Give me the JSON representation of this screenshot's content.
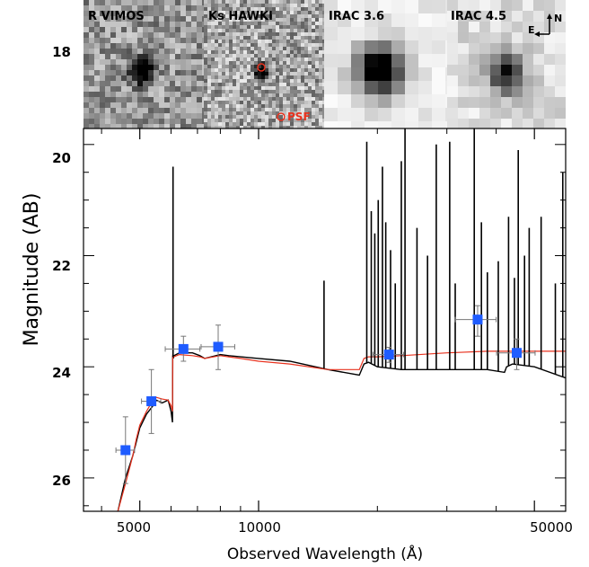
{
  "chart_data": {
    "type": "line",
    "xlabel": "Observed Wavelength (Å)",
    "ylabel": "Magnitude (AB)",
    "xscale": "log",
    "xlim": [
      3600,
      60000
    ],
    "ylim": [
      26.6,
      17.4
    ],
    "x_ticks": [
      5000,
      10000,
      50000
    ],
    "x_tick_labels": [
      "5000",
      "10000",
      "50000"
    ],
    "y_ticks": [
      18,
      20,
      22,
      24,
      26
    ],
    "y_tick_labels": [
      "18",
      "20",
      "22",
      "24",
      "26"
    ],
    "grid": false,
    "colors": {
      "black_spectrum": "#000000",
      "red_sed": "#e8321e",
      "points": "#1f5cff",
      "psf": "#e8321e"
    },
    "thumbnails": [
      {
        "label": "R VIMOS",
        "style": "small-source"
      },
      {
        "label": "Ks HAWKI",
        "style": "point-source",
        "psf_label": "PSF"
      },
      {
        "label": "IRAC 3.6",
        "style": "blocky-bright"
      },
      {
        "label": "IRAC 4.5",
        "style": "blocky-medium",
        "compass": [
          "N",
          "E"
        ]
      }
    ],
    "series": [
      {
        "role": "black_spectrum",
        "x": [
          3900,
          4400,
          4600,
          4700,
          4800,
          4900,
          5000,
          5200,
          5400,
          5500,
          5700,
          5900,
          6000,
          6050,
          6060,
          6080,
          6100,
          6300,
          6800,
          7100,
          7300,
          8000,
          8400,
          9000,
          10000,
          12000,
          15000,
          18000,
          18500,
          19000,
          20000,
          23000,
          30000,
          38000,
          42000,
          42500,
          44000,
          50000,
          60000
        ],
        "y": [
          28.0,
          26.6,
          26.0,
          25.8,
          25.6,
          25.35,
          25.1,
          24.85,
          24.7,
          24.6,
          24.65,
          24.6,
          24.8,
          25.0,
          23.8,
          23.85,
          23.8,
          23.75,
          23.75,
          23.8,
          23.85,
          23.78,
          23.8,
          23.82,
          23.85,
          23.9,
          24.05,
          24.15,
          23.95,
          23.92,
          24.0,
          24.05,
          24.05,
          24.05,
          24.1,
          24.0,
          23.95,
          24.0,
          24.2
        ]
      },
      {
        "role": "red_sed",
        "x": [
          3900,
          4400,
          4600,
          4700,
          4800,
          4900,
          5000,
          5200,
          5400,
          5500,
          5700,
          5900,
          6000,
          6050,
          6060,
          6100,
          6300,
          6800,
          7100,
          7300,
          8000,
          8400,
          9000,
          10000,
          12000,
          15000,
          18000,
          18500,
          19000,
          20000,
          23000,
          30000,
          38000,
          42000,
          50000,
          60000
        ],
        "y": [
          28.0,
          26.6,
          26.1,
          25.85,
          25.6,
          25.3,
          25.05,
          24.8,
          24.6,
          24.55,
          24.58,
          24.6,
          24.7,
          24.8,
          23.8,
          23.82,
          23.78,
          23.8,
          23.82,
          23.85,
          23.8,
          23.82,
          23.85,
          23.9,
          23.95,
          24.05,
          24.05,
          23.85,
          23.82,
          23.82,
          23.8,
          23.75,
          23.72,
          23.72,
          23.72,
          23.72
        ]
      }
    ],
    "emission_lines": [
      {
        "x": 6070,
        "top": 20.4
      },
      {
        "x": 14650,
        "top": 22.45
      },
      {
        "x": 18800,
        "top": 19.95
      },
      {
        "x": 19300,
        "top": 21.2
      },
      {
        "x": 19700,
        "top": 21.6
      },
      {
        "x": 20100,
        "top": 21.0
      },
      {
        "x": 20600,
        "top": 20.4
      },
      {
        "x": 21000,
        "top": 21.4
      },
      {
        "x": 21600,
        "top": 21.9
      },
      {
        "x": 22200,
        "top": 22.5
      },
      {
        "x": 23000,
        "top": 20.3
      },
      {
        "x": 23500,
        "top": 19.6
      },
      {
        "x": 25200,
        "top": 21.5
      },
      {
        "x": 26800,
        "top": 22.0
      },
      {
        "x": 28200,
        "top": 20.0
      },
      {
        "x": 30500,
        "top": 19.95
      },
      {
        "x": 31500,
        "top": 22.5
      },
      {
        "x": 35200,
        "top": 19.7
      },
      {
        "x": 36700,
        "top": 21.4
      },
      {
        "x": 38000,
        "top": 22.3
      },
      {
        "x": 40500,
        "top": 22.1
      },
      {
        "x": 43000,
        "top": 21.3
      },
      {
        "x": 44500,
        "top": 22.4
      },
      {
        "x": 45500,
        "top": 20.1
      },
      {
        "x": 47200,
        "top": 22.0
      },
      {
        "x": 48500,
        "top": 21.5
      },
      {
        "x": 52000,
        "top": 21.3
      },
      {
        "x": 56500,
        "top": 22.5
      },
      {
        "x": 59000,
        "top": 20.5
      }
    ],
    "photometry": [
      {
        "x": 4600,
        "y": 25.5,
        "xerr": [
          4350,
          4850
        ],
        "yerr": [
          24.9,
          26.1
        ]
      },
      {
        "x": 5350,
        "y": 24.62,
        "xerr": [
          5050,
          5650
        ],
        "yerr": [
          24.05,
          25.2
        ]
      },
      {
        "x": 6450,
        "y": 23.68,
        "xerr": [
          5800,
          7100
        ],
        "yerr": [
          23.45,
          23.9
        ]
      },
      {
        "x": 7900,
        "y": 23.64,
        "xerr": [
          7150,
          8700
        ],
        "yerr": [
          23.25,
          24.05
        ]
      },
      {
        "x": 21400,
        "y": 23.78,
        "xerr": [
          19500,
          23300
        ],
        "yerr": [
          23.65,
          23.92
        ]
      },
      {
        "x": 35900,
        "y": 23.15,
        "xerr": [
          31500,
          40000
        ],
        "yerr": [
          22.9,
          23.45
        ]
      },
      {
        "x": 45100,
        "y": 23.75,
        "xerr": [
          40100,
          50200
        ],
        "yerr": [
          23.5,
          24.05
        ]
      }
    ]
  }
}
